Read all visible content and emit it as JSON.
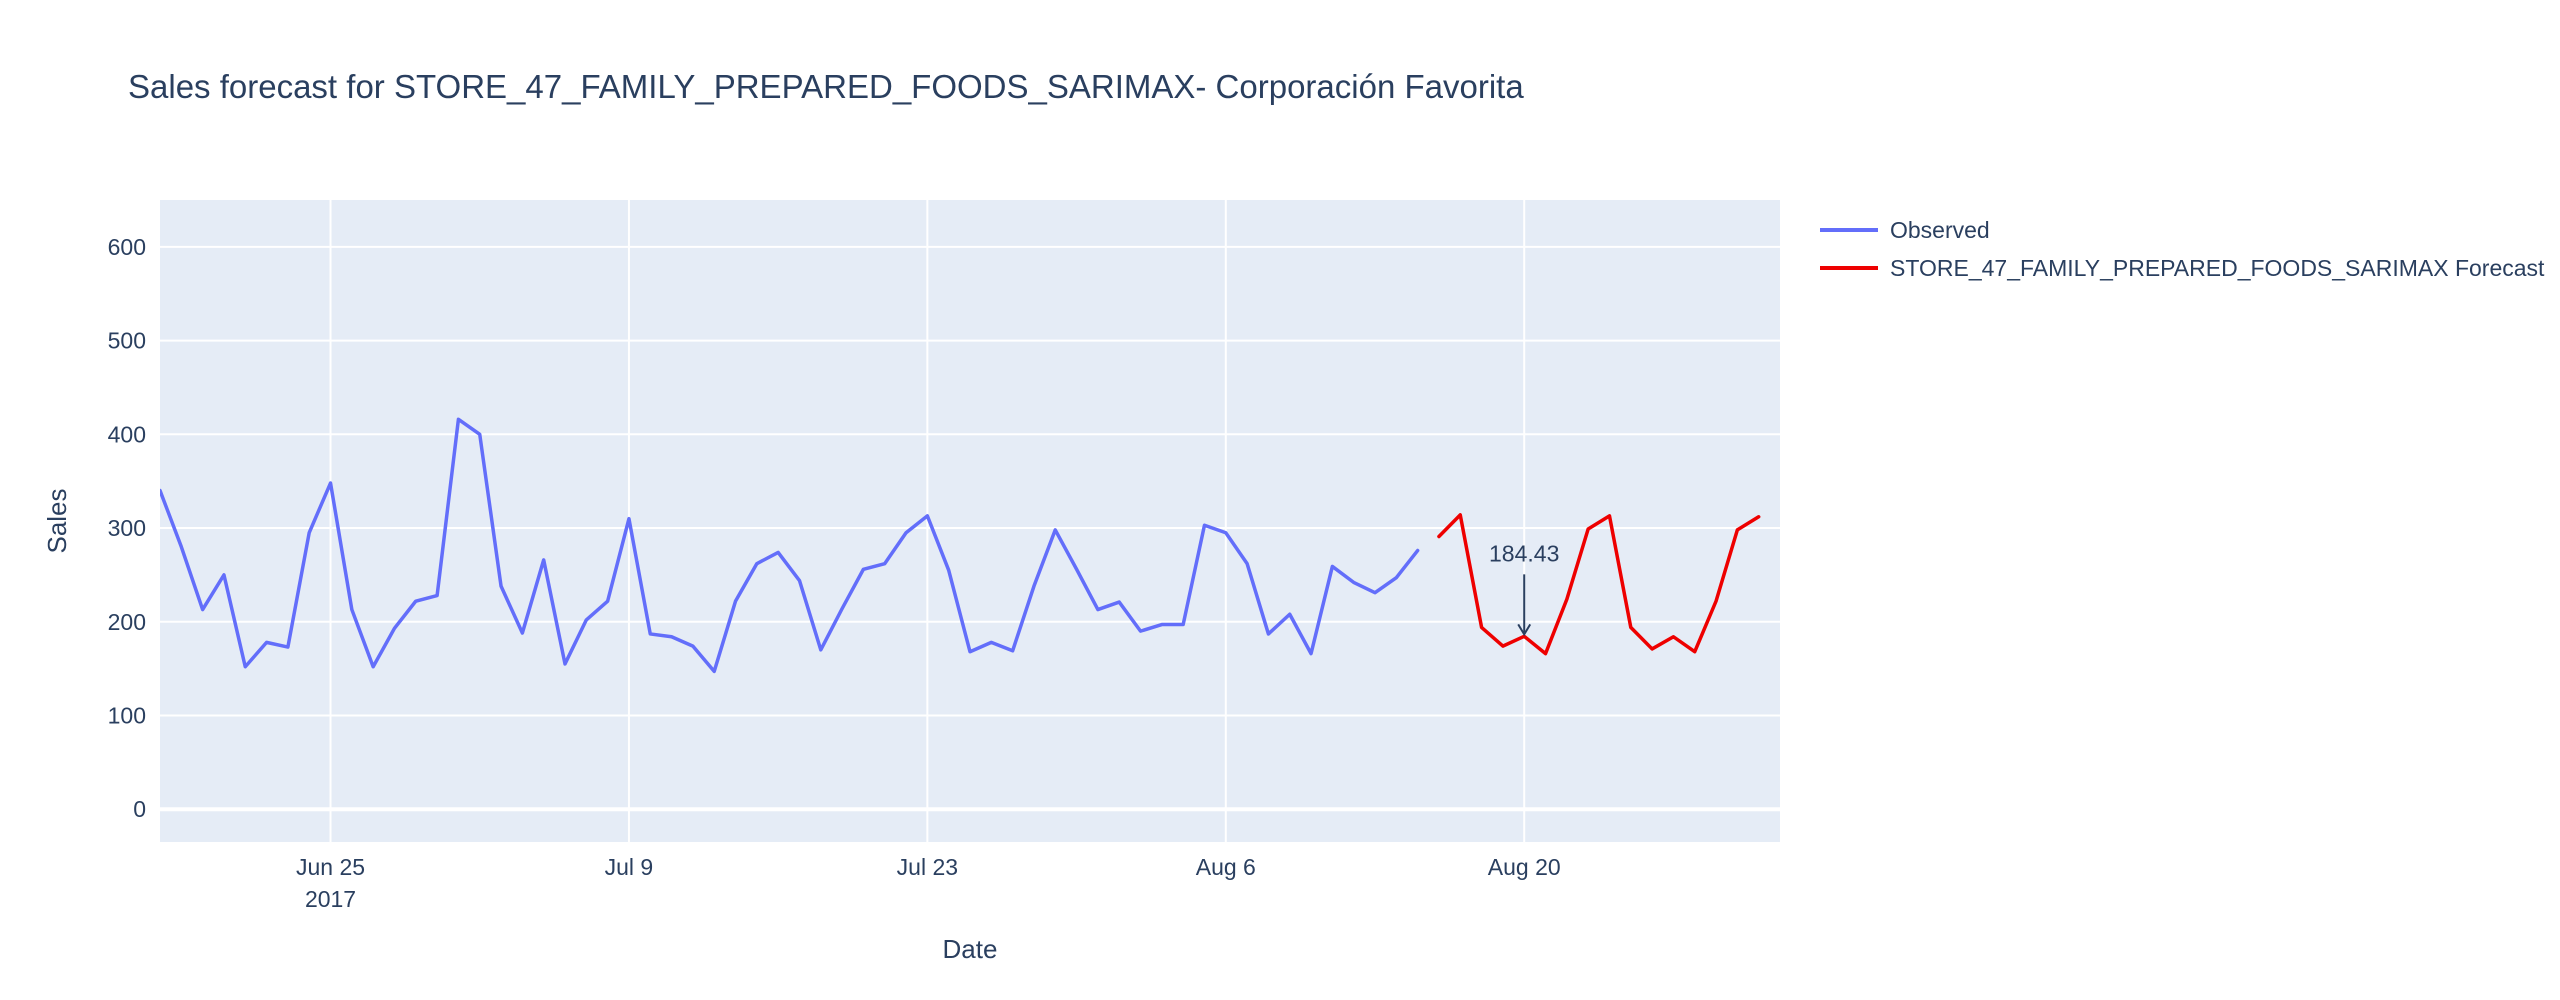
{
  "chart_data": {
    "type": "line",
    "title": "Sales forecast for STORE_47_FAMILY_PREPARED_FOODS_SARIMAX- Corporación Favorita",
    "xlabel": "Date",
    "ylabel": "Sales",
    "x_range": [
      "2017-06-17",
      "2017-09-01"
    ],
    "ylim": [
      -35,
      650
    ],
    "y_ticks": [
      0,
      100,
      200,
      300,
      400,
      500,
      600
    ],
    "x_ticks": [
      {
        "date": "2017-06-25",
        "label": "Jun 25",
        "sublabel": "2017"
      },
      {
        "date": "2017-07-09",
        "label": "Jul 9",
        "sublabel": ""
      },
      {
        "date": "2017-07-23",
        "label": "Jul 23",
        "sublabel": ""
      },
      {
        "date": "2017-08-06",
        "label": "Aug 6",
        "sublabel": ""
      },
      {
        "date": "2017-08-20",
        "label": "Aug 20",
        "sublabel": ""
      }
    ],
    "grid": true,
    "legend_position": "top-right-outside",
    "series": [
      {
        "name": "Observed",
        "color": "#636efa",
        "start_date": "2017-06-17",
        "values": [
          340,
          280,
          213,
          250,
          152,
          178,
          173,
          295,
          348,
          213,
          152,
          193,
          222,
          228,
          416,
          400,
          238,
          188,
          266,
          155,
          202,
          222,
          310,
          187,
          184,
          174,
          147,
          222,
          262,
          274,
          244,
          170,
          214,
          256,
          262,
          295,
          313,
          255,
          168,
          178,
          169,
          238,
          298,
          256,
          213,
          221,
          190,
          197,
          197,
          303,
          295,
          262,
          187,
          208,
          166,
          259,
          242,
          231,
          247,
          276
        ]
      },
      {
        "name": "STORE_47_FAMILY_PREPARED_FOODS_SARIMAX Forecast",
        "color": "#ee0000",
        "start_date": "2017-08-16",
        "values": [
          291,
          314,
          194,
          174,
          184.43,
          166,
          224,
          299,
          313,
          194,
          171,
          184,
          168,
          222,
          298,
          312
        ]
      }
    ],
    "annotations": [
      {
        "date": "2017-08-20",
        "value": 184.43,
        "text": "184.43"
      }
    ]
  }
}
